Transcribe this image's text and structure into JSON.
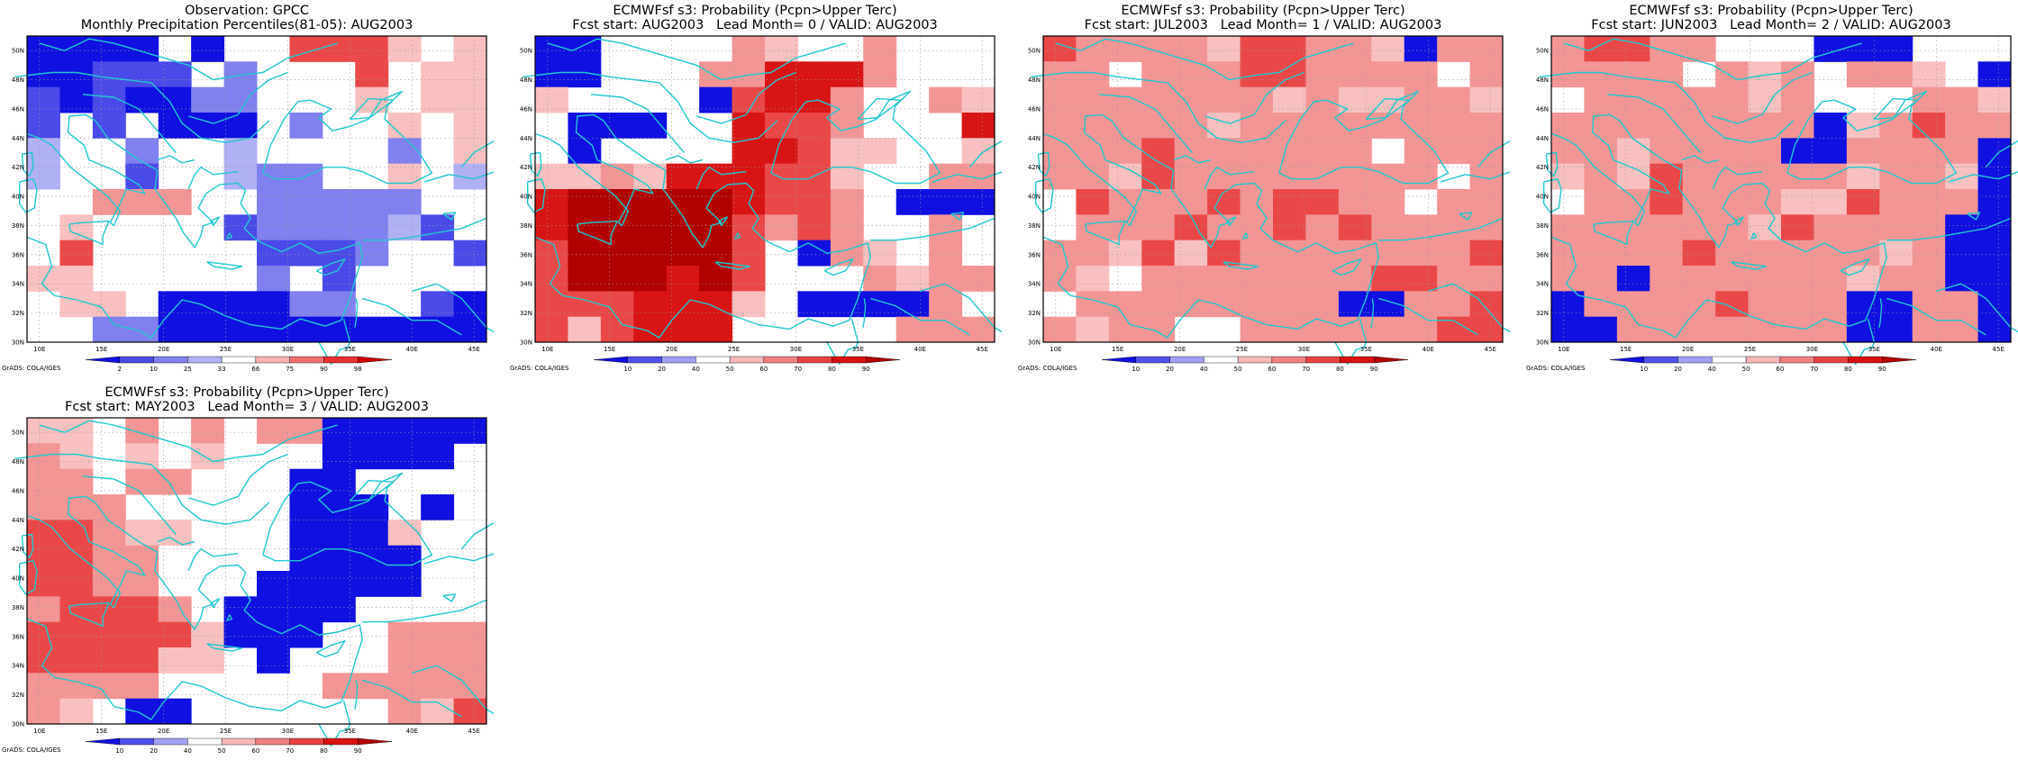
{
  "panels": [
    {
      "id": "obs",
      "title1": "Observation: GPCC",
      "title2": "Monthly Precipitation Percentiles(81-05): AUG2003",
      "colorbar_labels": [
        "2",
        "10",
        "25",
        "33",
        "66",
        "75",
        "90",
        "98"
      ],
      "colorbar_colors": [
        "#1010e0",
        "#4a4ae8",
        "#8080ee",
        "#b0b0f4",
        "#ffffff",
        "#f8b0b0",
        "#f07070",
        "#e83030",
        "#cc0000"
      ],
      "grid": [
        "BBBB.B..RRRW.W",
        "BBCCC.D...R.WW",
        "CBCBBDD...W.WW",
        "C.C.BBB.D..W.W",
        "E..D..E....D.W",
        "E..C..EDD..W.E",
        "..VVV..DDDDD..",
        ".W....CDDDDEC.",
        ".R.....CCCD..C",
        "WW.....D.C....",
        ".WW.BBBBDD..CB",
        "..DDBBBBBBBBBB"
      ]
    },
    {
      "id": "lead0",
      "title1": "ECMWFsf s3: Probability (Pcpn>Upper Terc)",
      "title2": "Fcst start: AUG2003   Lead Month= 0 / VALID: AUG2003",
      "colorbar_labels": [
        "10",
        "20",
        "40",
        "50",
        "60",
        "70",
        "80",
        "90"
      ],
      "colorbar_colors": [
        "#1010e0",
        "#5050ea",
        "#a0a0f2",
        "#ffffff",
        "#f8b8b8",
        "#f08080",
        "#e84040",
        "#d81010",
        "#b00000"
      ],
      "grid": [
        "BB....VW..V...",
        "BB...VVXXXV...",
        "W....BRXXV..VW",
        ".BBB..XRRV...X",
        ".B....XXRWW..W",
        "WWVWXXXRRW..VV",
        "XZZZZZXRRV.BBB",
        "XZZZZZRVRV..V.",
        "RZZZZZR.BVW.V.",
        "RZZZXZR...VWVV",
        "RRRXXXW.BBBBV.",
        "RWRXXX.....VVV"
      ]
    },
    {
      "id": "lead1",
      "title1": "ECMWFsf s3: Probability (Pcpn>Upper Terc)",
      "title2": "Fcst start: JUL2003   Lead Month= 1 / VALID: AUG2003",
      "colorbar_labels": [
        "10",
        "20",
        "40",
        "50",
        "60",
        "70",
        "80",
        "90"
      ],
      "colorbar_colors": [
        "#1010e0",
        "#5050ea",
        "#a0a0f2",
        "#ffffff",
        "#f8b8b8",
        "#f08080",
        "#e84040",
        "#d81010",
        "#b00000"
      ],
      "grid": [
        "RVVVVWRRVVWBVV",
        "VV.VVVRRVVVV.V",
        "VVVVVVVWVWWVVW",
        "VVVVVWVVVVVVVV",
        "VVVRVVVVVV.VVV",
        "VVWRVVVVVVVV.V",
        ".RVVVRVRRVV.VV",
        ".VVVRVVRVRVVVV",
        "VVWRWRVVVVVVVR",
        "VW.VVVVVVVRRVV",
        ".VVVVVVVVBBVVR",
        "VWVV..VVVVVVRR"
      ]
    },
    {
      "id": "lead2",
      "title1": "ECMWFsf s3: Probability (Pcpn>Upper Terc)",
      "title2": "Fcst start: JUN2003   Lead Month= 2 / VALID: AUG2003",
      "colorbar_labels": [
        "10",
        "20",
        "40",
        "50",
        "60",
        "70",
        "80",
        "90"
      ],
      "colorbar_colors": [
        "#1010e0",
        "#5050ea",
        "#a0a0f2",
        "#ffffff",
        "#f8b8b8",
        "#f08080",
        "#e84040",
        "#d81010",
        "#b00000"
      ],
      "grid": [
        "VRRVV...BBB...",
        "VVVV.VWV.VVW.B",
        ".VVVVVWV...VVW",
        "VVVVVVVVBWVRVV",
        "VVWVVVVBBVVVVB",
        "WVWRVVVVVWVVWB",
        ".VVRVVVWWRVVVB",
        "VVVVVVWRVVVVBB",
        "VVVVRVVVVVWVBB",
        "VVBVVVVVVWVVBB",
        "BVVVVRVVVBBVVB",
        "BBVVVVVVVBBVVB"
      ]
    },
    {
      "id": "lead3",
      "title1": "ECMWFsf s3: Probability (Pcpn>Upper Terc)",
      "title2": "Fcst start: MAY2003   Lead Month= 3 / VALID: AUG2003",
      "colorbar_labels": [
        "10",
        "20",
        "40",
        "50",
        "60",
        "70",
        "80",
        "90"
      ],
      "colorbar_colors": [
        "#1010e0",
        "#5050ea",
        "#a0a0f2",
        "#ffffff",
        "#f8b8b8",
        "#f08080",
        "#e84040",
        "#d81010",
        "#b00000"
      ],
      "grid": [
        "WW.V.V.VVBBBBB",
        "VW.W.W...BBBB.",
        "VV.VV...BB....",
        "VVV.....BBB.B.",
        "RRVWW...BBBW..",
        "RRVV....BBBB..",
        "RRVV...BBBBB..",
        "VRRRV.BBBB....",
        "RRRRRWBBB..VVV",
        "RRRRWW.B...VVV",
        "VVVV.....VVVVV",
        "VW.BB......VWR"
      ]
    }
  ],
  "map": {
    "lat_labels": [
      "50N",
      "48N",
      "46N",
      "44N",
      "42N",
      "40N",
      "38N",
      "36N",
      "34N",
      "32N",
      "30N"
    ],
    "lon_labels": [
      "10E",
      "15E",
      "20E",
      "25E",
      "30E",
      "35E",
      "40E",
      "45E"
    ],
    "cell_colors": {
      "B": "#1010e0",
      "C": "#4a4ae8",
      "D": "#8080ee",
      "E": "#b0b0f4",
      "W": "#f8c0c0",
      "V": "#f39595",
      "R": "#ea4848",
      "X": "#d81414",
      "Z": "#b00000"
    },
    "coast_color": "#20c8d0",
    "grid_color": "#999999"
  },
  "footer": "GrADS: COLA/IGES"
}
